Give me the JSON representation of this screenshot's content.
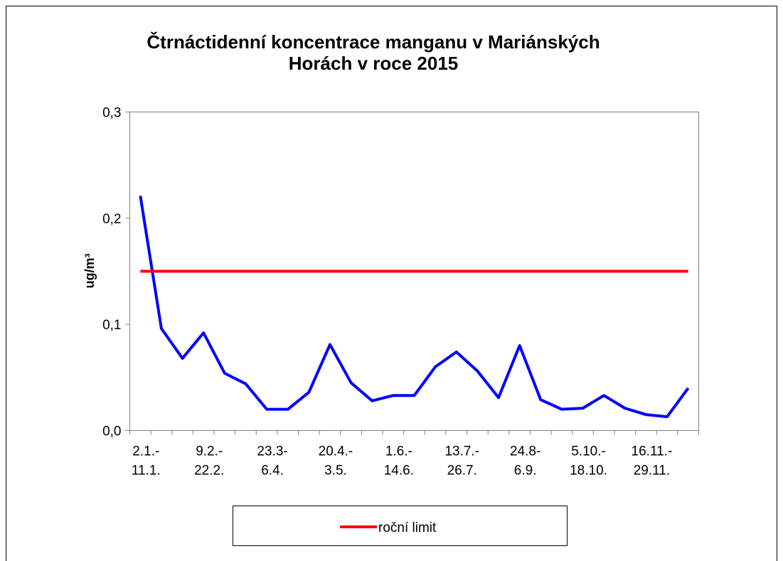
{
  "chart_data": {
    "type": "line",
    "title": "Čtrnáctidenní koncentrace manganu v Mariánských\nHorách v roce 2015",
    "y_label": "ug/m³",
    "categories": [
      "2.1.-\n11.1.",
      null,
      null,
      "9.2.-\n22.2.",
      null,
      null,
      "23.3-\n6.4.",
      null,
      null,
      "20.4.-\n3.5.",
      null,
      null,
      "1.6.-\n14.6.",
      null,
      null,
      "13.7.-\n26.7.",
      null,
      null,
      "24.8-\n6.9.",
      null,
      null,
      "5.10.-\n18.10.",
      null,
      null,
      "16.11.-\n29.11.",
      null,
      null
    ],
    "series": [
      {
        "color": "#0000ff",
        "values": [
          0.221,
          0.096,
          0.068,
          0.092,
          0.054,
          0.044,
          0.02,
          0.02,
          0.036,
          0.081,
          0.045,
          0.028,
          0.033,
          0.033,
          0.06,
          0.074,
          0.056,
          0.031,
          0.08,
          0.029,
          0.02,
          0.021,
          0.033,
          0.021,
          0.015,
          0.013,
          0.04
        ]
      },
      {
        "name": "roční limit",
        "color": "#ff0000",
        "values": [
          0.15,
          0.15,
          0.15,
          0.15,
          0.15,
          0.15,
          0.15,
          0.15,
          0.15,
          0.15,
          0.15,
          0.15,
          0.15,
          0.15,
          0.15,
          0.15,
          0.15,
          0.15,
          0.15,
          0.15,
          0.15,
          0.15,
          0.15,
          0.15,
          0.15,
          0.15,
          0.15
        ]
      }
    ],
    "ylim": [
      0,
      0.3
    ],
    "yticks": [
      {
        "value": 0,
        "label": "0,0"
      },
      {
        "value": 0.1,
        "label": "0,1"
      },
      {
        "value": 0.2,
        "label": "0,2"
      },
      {
        "value": 0.3,
        "label": "0,3"
      }
    ],
    "legend": "bottom"
  }
}
